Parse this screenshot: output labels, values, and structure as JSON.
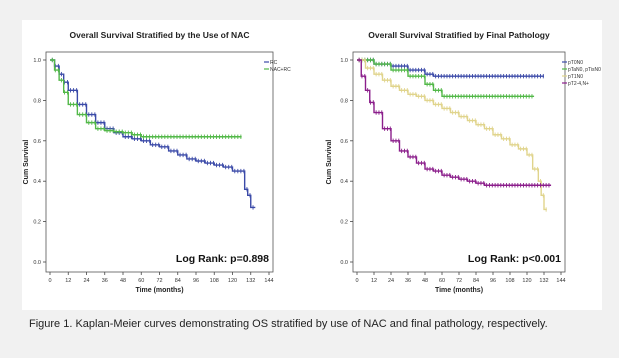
{
  "caption": "Figure 1. Kaplan-Meier curves demonstrating OS stratified by use of NAC and final pathology, respectively.",
  "chart_data": [
    {
      "type": "line",
      "title": "Overall Survival Stratified by the Use of NAC",
      "xlabel": "Time (months)",
      "ylabel": "Cum Survival",
      "xlim": [
        0,
        144
      ],
      "ylim": [
        0,
        1.0
      ],
      "xticks": [
        0,
        12,
        24,
        36,
        48,
        60,
        72,
        84,
        96,
        108,
        120,
        132,
        144
      ],
      "yticks": [
        0.0,
        0.2,
        0.4,
        0.6,
        0.8,
        1.0
      ],
      "legend_position": "top-right",
      "annotation": "Log Rank: p=0.898",
      "series": [
        {
          "name": "RC",
          "color": "#3b4aa8",
          "x": [
            0,
            3,
            6,
            9,
            12,
            18,
            24,
            30,
            36,
            42,
            48,
            54,
            60,
            66,
            72,
            78,
            84,
            90,
            96,
            102,
            108,
            114,
            120,
            126,
            128,
            130,
            132,
            135
          ],
          "y": [
            1.0,
            0.97,
            0.93,
            0.89,
            0.85,
            0.78,
            0.73,
            0.69,
            0.66,
            0.64,
            0.62,
            0.61,
            0.6,
            0.58,
            0.57,
            0.55,
            0.53,
            0.51,
            0.5,
            0.49,
            0.48,
            0.47,
            0.45,
            0.45,
            0.36,
            0.33,
            0.27,
            0.27
          ]
        },
        {
          "name": "NAC+RC",
          "color": "#52b848",
          "x": [
            0,
            3,
            6,
            9,
            12,
            18,
            24,
            30,
            36,
            42,
            48,
            54,
            60,
            66,
            72,
            84,
            96,
            108,
            120,
            126
          ],
          "y": [
            1.0,
            0.95,
            0.9,
            0.84,
            0.78,
            0.73,
            0.69,
            0.66,
            0.65,
            0.645,
            0.64,
            0.63,
            0.62,
            0.62,
            0.62,
            0.62,
            0.62,
            0.62,
            0.62,
            0.62
          ]
        }
      ]
    },
    {
      "type": "line",
      "title": "Overall Survival Stratified by Final Pathology",
      "xlabel": "Time (months)",
      "ylabel": "Cum Survival",
      "xlim": [
        0,
        144
      ],
      "ylim": [
        0,
        1.0
      ],
      "xticks": [
        0,
        12,
        24,
        36,
        48,
        60,
        72,
        84,
        96,
        108,
        120,
        132,
        144
      ],
      "yticks": [
        0.0,
        0.2,
        0.4,
        0.6,
        0.8,
        1.0
      ],
      "legend_position": "top-right",
      "annotation": "Log Rank: p<0.001",
      "series": [
        {
          "name": "pT0N0",
          "color": "#3b4aa8",
          "x": [
            0,
            12,
            24,
            36,
            48,
            54,
            60,
            72,
            84,
            96,
            108,
            120,
            132
          ],
          "y": [
            1.0,
            0.98,
            0.97,
            0.95,
            0.93,
            0.92,
            0.92,
            0.92,
            0.92,
            0.92,
            0.92,
            0.92,
            0.92
          ]
        },
        {
          "name": "pTaN0, pTisN0",
          "color": "#52b848",
          "x": [
            0,
            12,
            24,
            36,
            48,
            54,
            60,
            72,
            84,
            96,
            108,
            120,
            125
          ],
          "y": [
            1.0,
            0.98,
            0.95,
            0.92,
            0.88,
            0.85,
            0.82,
            0.82,
            0.82,
            0.82,
            0.82,
            0.82,
            0.82
          ]
        },
        {
          "name": "pT1N0",
          "color": "#e0d48c",
          "x": [
            0,
            6,
            12,
            18,
            24,
            30,
            36,
            42,
            48,
            54,
            60,
            66,
            72,
            78,
            84,
            90,
            96,
            102,
            108,
            114,
            120,
            124,
            126,
            128,
            130,
            132,
            134
          ],
          "y": [
            1.0,
            0.96,
            0.93,
            0.9,
            0.87,
            0.85,
            0.83,
            0.82,
            0.8,
            0.78,
            0.76,
            0.74,
            0.72,
            0.7,
            0.68,
            0.66,
            0.63,
            0.61,
            0.58,
            0.56,
            0.53,
            0.46,
            0.46,
            0.4,
            0.33,
            0.26,
            0.26
          ]
        },
        {
          "name": "pT2-4,N+",
          "color": "#8b1e8b",
          "x": [
            0,
            3,
            6,
            9,
            12,
            18,
            24,
            30,
            36,
            42,
            48,
            54,
            60,
            66,
            72,
            78,
            84,
            90,
            96,
            108,
            120,
            132,
            137
          ],
          "y": [
            1.0,
            0.92,
            0.85,
            0.79,
            0.74,
            0.66,
            0.6,
            0.55,
            0.52,
            0.49,
            0.46,
            0.45,
            0.43,
            0.42,
            0.41,
            0.4,
            0.39,
            0.38,
            0.38,
            0.38,
            0.38,
            0.38,
            0.38
          ]
        }
      ]
    }
  ]
}
